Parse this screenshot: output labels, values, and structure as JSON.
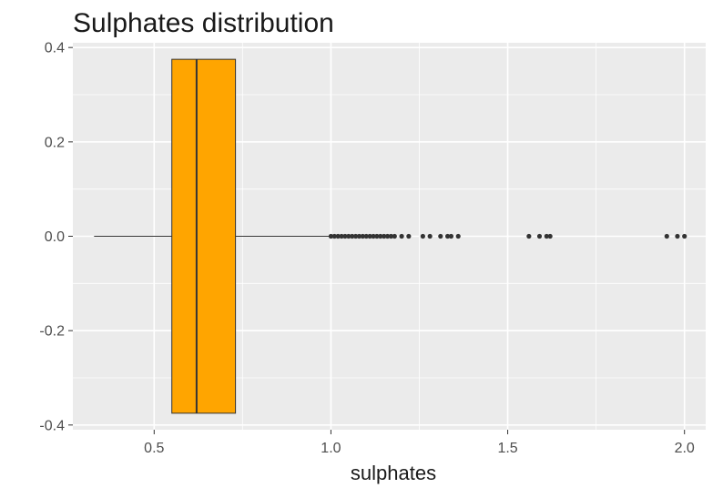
{
  "chart_data": {
    "type": "boxplot",
    "title": "Sulphates distribution",
    "xlabel": "sulphates",
    "ylabel": "",
    "xlim": [
      0.27,
      2.06
    ],
    "ylim": [
      -0.41,
      0.41
    ],
    "x_ticks": [
      0.5,
      1.0,
      1.5,
      2.0
    ],
    "x_tick_labels": [
      "0.5",
      "1.0",
      "1.5",
      "2.0"
    ],
    "y_ticks": [
      -0.4,
      -0.2,
      0.0,
      0.2,
      0.4
    ],
    "y_tick_labels": [
      "-0.4",
      "-0.2",
      "0.0",
      "0.2",
      "0.4"
    ],
    "box": {
      "whisker_low": 0.33,
      "q1": 0.55,
      "median": 0.62,
      "q3": 0.73,
      "whisker_high": 1.0,
      "y_low": -0.375,
      "y_high": 0.375
    },
    "outliers": [
      1.0,
      1.01,
      1.02,
      1.03,
      1.04,
      1.05,
      1.06,
      1.07,
      1.08,
      1.09,
      1.1,
      1.11,
      1.12,
      1.13,
      1.14,
      1.15,
      1.16,
      1.17,
      1.18,
      1.2,
      1.22,
      1.26,
      1.28,
      1.31,
      1.33,
      1.34,
      1.36,
      1.56,
      1.59,
      1.61,
      1.62,
      1.95,
      1.98,
      2.0
    ],
    "colors": {
      "box_fill": "#FFA500",
      "box_outline": "#333333",
      "outlier": "#333333",
      "panel": "#EBEBEB",
      "grid": "#FFFFFF"
    },
    "grid": true,
    "legend": "none"
  }
}
